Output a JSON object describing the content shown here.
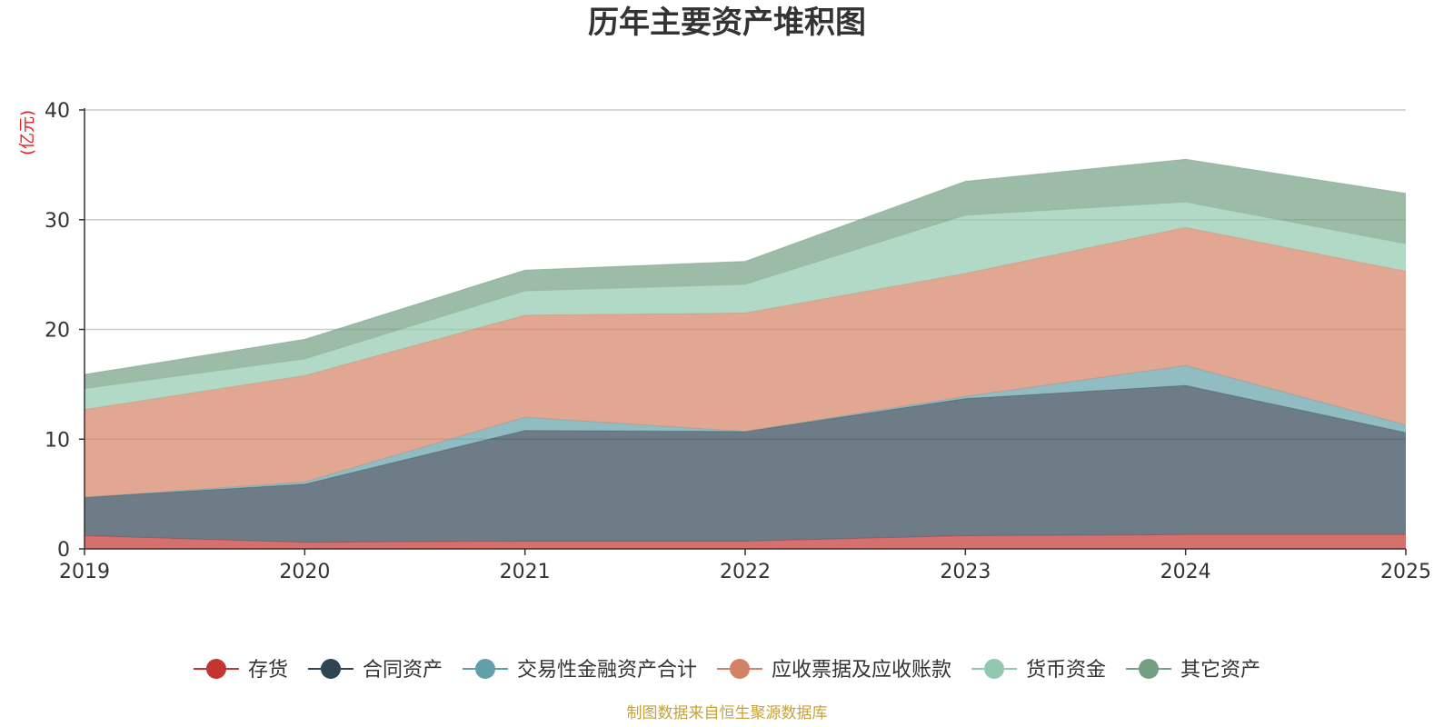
{
  "chart_data": {
    "type": "area",
    "stacked": true,
    "title": "历年主要资产堆积图",
    "ylabel": "(亿元)",
    "xlabel": "",
    "ylim": [
      0,
      40
    ],
    "yticks": [
      0,
      10,
      20,
      30,
      40
    ],
    "grid": true,
    "legend_position": "bottom",
    "categories": [
      "2019",
      "2020",
      "2021",
      "2022",
      "2023",
      "2024",
      "2025"
    ],
    "series": [
      {
        "name": "存货",
        "color": "#c23531",
        "values": [
          1.2,
          0.6,
          0.7,
          0.7,
          1.2,
          1.3,
          1.3
        ]
      },
      {
        "name": "合同资产",
        "color": "#2f4554",
        "values": [
          3.5,
          5.3,
          10.1,
          10.0,
          12.5,
          13.6,
          9.3
        ]
      },
      {
        "name": "交易性金融资产合计",
        "color": "#61a0a8",
        "values": [
          0.0,
          0.2,
          1.2,
          0.0,
          0.2,
          1.8,
          0.7
        ]
      },
      {
        "name": "应收票据及应收账款",
        "color": "#d48265",
        "values": [
          8.0,
          9.7,
          9.3,
          10.8,
          11.2,
          12.6,
          14.0
        ]
      },
      {
        "name": "货币资金",
        "color": "#91c7ae",
        "values": [
          1.9,
          1.5,
          2.2,
          2.6,
          5.3,
          2.3,
          2.5
        ]
      },
      {
        "name": "其它资产",
        "color": "#749f83",
        "values": [
          1.3,
          1.8,
          1.9,
          2.1,
          3.1,
          3.9,
          4.6
        ]
      }
    ]
  },
  "footer": {
    "source": "制图数据来自恒生聚源数据库"
  }
}
